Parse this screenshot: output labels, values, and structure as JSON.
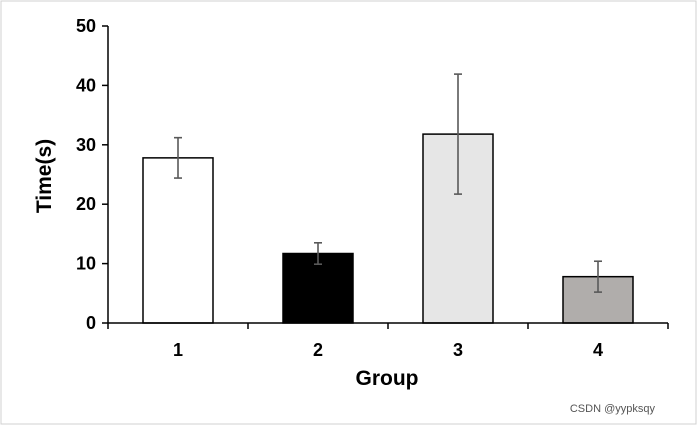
{
  "chart_data": {
    "type": "bar",
    "title": "",
    "xlabel": "Group",
    "ylabel": "Time(s)",
    "ylim": [
      0,
      50
    ],
    "yticks": [
      0,
      10,
      20,
      30,
      40,
      50
    ],
    "categories": [
      "1",
      "2",
      "3",
      "4"
    ],
    "values": [
      27.8,
      11.7,
      31.8,
      7.8
    ],
    "error_bars": [
      3.4,
      1.8,
      10.1,
      2.6
    ],
    "bar_colors": [
      "#ffffff",
      "#000000",
      "#e6e6e6",
      "#b0adab"
    ],
    "bar_edge_color": "#000000",
    "error_bar_color": "#595959",
    "grid": false,
    "legend": "none"
  },
  "watermark": "CSDN @yypksqy"
}
